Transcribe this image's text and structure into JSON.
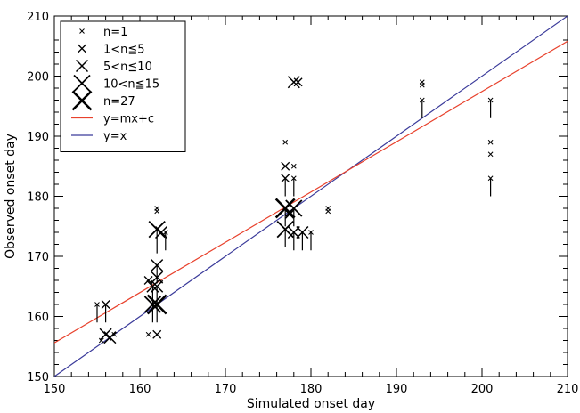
{
  "chart_data": {
    "type": "scatter",
    "xlabel": "Simulated onset day",
    "ylabel": "Observed onset day",
    "xlim": [
      150,
      210
    ],
    "ylim": [
      150,
      210
    ],
    "xticks": [
      150,
      160,
      170,
      180,
      190,
      200,
      210
    ],
    "yticks": [
      150,
      160,
      170,
      180,
      190,
      200,
      210
    ],
    "x_minor_step": 2,
    "y_minor_step": 2,
    "legend": {
      "placement": "top-left",
      "entries": [
        {
          "label": "n=1",
          "kind": "marker",
          "size": 1
        },
        {
          "label": "1<n≦5",
          "kind": "marker",
          "size": 2
        },
        {
          "label": "5<n≦10",
          "kind": "marker",
          "size": 3
        },
        {
          "label": "10<n≦15",
          "kind": "marker",
          "size": 4
        },
        {
          "label": "n=27",
          "kind": "marker",
          "size": 5
        },
        {
          "label": "y=mx+c",
          "kind": "line",
          "color": "#e8412c"
        },
        {
          "label": "y=x",
          "kind": "line",
          "color": "#3a3a9a"
        }
      ]
    },
    "fit_line": {
      "name": "y=mx+c",
      "color": "#e8412c",
      "x": [
        150,
        210
      ],
      "y": [
        155.6,
        205.8
      ]
    },
    "identity_line": {
      "name": "y=x",
      "color": "#3a3a9a",
      "x": [
        150,
        210
      ],
      "y": [
        150,
        210
      ]
    },
    "points": [
      {
        "x": 155,
        "y": 162,
        "size": 1,
        "err": 3
      },
      {
        "x": 155.5,
        "y": 156,
        "size": 1
      },
      {
        "x": 156,
        "y": 162,
        "size": 2,
        "err": 3
      },
      {
        "x": 156,
        "y": 157,
        "size": 3
      },
      {
        "x": 156.5,
        "y": 156.5,
        "size": 3
      },
      {
        "x": 157,
        "y": 157,
        "size": 1
      },
      {
        "x": 161,
        "y": 166,
        "size": 2
      },
      {
        "x": 161,
        "y": 157,
        "size": 1
      },
      {
        "x": 161.5,
        "y": 165,
        "size": 3,
        "err": 3
      },
      {
        "x": 161.5,
        "y": 162,
        "size": 4,
        "err": 3
      },
      {
        "x": 162,
        "y": 178,
        "size": 1
      },
      {
        "x": 162,
        "y": 177.5,
        "size": 1
      },
      {
        "x": 162,
        "y": 174.5,
        "size": 4,
        "err": 4
      },
      {
        "x": 162,
        "y": 168.5,
        "size": 3,
        "err": 3
      },
      {
        "x": 162,
        "y": 166.5,
        "size": 3
      },
      {
        "x": 162,
        "y": 165,
        "size": 3,
        "err": 3
      },
      {
        "x": 162,
        "y": 162,
        "size": 5,
        "err": 3
      },
      {
        "x": 162,
        "y": 157,
        "size": 2
      },
      {
        "x": 162.5,
        "y": 174,
        "size": 3
      },
      {
        "x": 163,
        "y": 174,
        "size": 1,
        "err": 3
      },
      {
        "x": 177,
        "y": 189,
        "size": 1
      },
      {
        "x": 177,
        "y": 185,
        "size": 2
      },
      {
        "x": 177,
        "y": 183,
        "size": 2,
        "err": 3
      },
      {
        "x": 177,
        "y": 178,
        "size": 5,
        "err": 3
      },
      {
        "x": 177,
        "y": 174.5,
        "size": 4,
        "err": 3
      },
      {
        "x": 177.5,
        "y": 177,
        "size": 2
      },
      {
        "x": 178,
        "y": 185,
        "size": 1
      },
      {
        "x": 178,
        "y": 183,
        "size": 1,
        "err": 3
      },
      {
        "x": 178,
        "y": 178,
        "size": 4,
        "err": 3
      },
      {
        "x": 178,
        "y": 174,
        "size": 3,
        "err": 3
      },
      {
        "x": 178,
        "y": 199,
        "size": 3
      },
      {
        "x": 178.5,
        "y": 199,
        "size": 2
      },
      {
        "x": 179,
        "y": 174,
        "size": 3,
        "err": 3
      },
      {
        "x": 180,
        "y": 174,
        "size": 1,
        "err": 3
      },
      {
        "x": 182,
        "y": 178,
        "size": 1
      },
      {
        "x": 182,
        "y": 177.5,
        "size": 1
      },
      {
        "x": 193,
        "y": 199,
        "size": 1
      },
      {
        "x": 193,
        "y": 198.5,
        "size": 1
      },
      {
        "x": 193,
        "y": 196,
        "size": 1,
        "err": 3
      },
      {
        "x": 201,
        "y": 196,
        "size": 1,
        "err": 3
      },
      {
        "x": 201,
        "y": 189,
        "size": 1
      },
      {
        "x": 201,
        "y": 187,
        "size": 1
      },
      {
        "x": 201,
        "y": 183,
        "size": 1,
        "err": 3
      }
    ]
  }
}
